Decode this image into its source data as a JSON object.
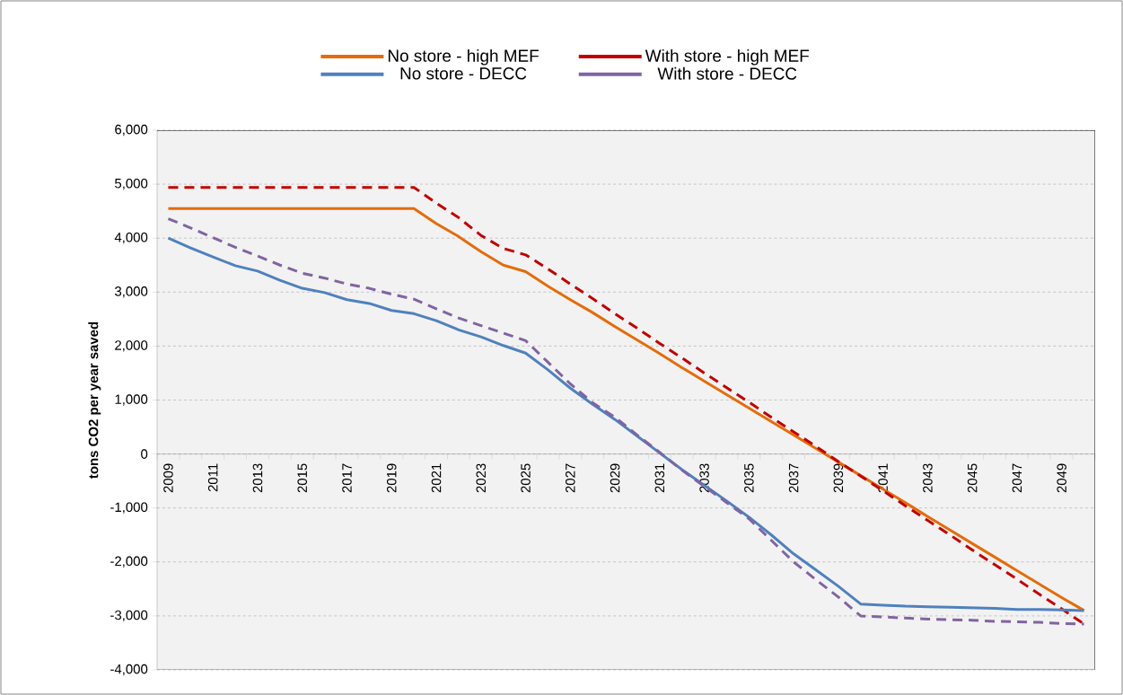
{
  "chart_data": {
    "type": "line",
    "ylabel": "tons CO2 per year saved",
    "categories": [
      "2009",
      null,
      "2011",
      null,
      "2013",
      null,
      "2015",
      null,
      "2017",
      null,
      "2019",
      null,
      "2021",
      null,
      "2023",
      null,
      "2025",
      null,
      "2027",
      null,
      "2029",
      null,
      "2031",
      null,
      "2033",
      null,
      "2035",
      null,
      "2037",
      null,
      "2039",
      null,
      "2041",
      null,
      "2043",
      null,
      "2045",
      null,
      "2047",
      null,
      "2049",
      null
    ],
    "series": [
      {
        "name": "No store - high MEF",
        "color": "#e46c0a",
        "line_style": "solid",
        "values": [
          4550,
          4550,
          4550,
          4550,
          4550,
          4550,
          4550,
          4550,
          4550,
          4550,
          4550,
          4550,
          4270,
          4030,
          3750,
          3500,
          3380,
          3110,
          2860,
          2620,
          2360,
          2110,
          1860,
          1600,
          1350,
          1100,
          850,
          600,
          350,
          100,
          -150,
          -400,
          -650,
          -900,
          -1160,
          -1410,
          -1660,
          -1910,
          -2160,
          -2410,
          -2660,
          -2900
        ]
      },
      {
        "name": "With store - high MEF",
        "color": "#c00000",
        "line_style": "dashed",
        "values": [
          4940,
          4940,
          4940,
          4940,
          4940,
          4940,
          4940,
          4940,
          4940,
          4940,
          4940,
          4940,
          4650,
          4380,
          4050,
          3810,
          3690,
          3430,
          3150,
          2880,
          2600,
          2330,
          2050,
          1780,
          1500,
          1230,
          960,
          680,
          410,
          140,
          -140,
          -410,
          -680,
          -960,
          -1230,
          -1500,
          -1780,
          -2050,
          -2320,
          -2600,
          -2870,
          -3150
        ]
      },
      {
        "name": "No store - DECC",
        "color": "#4f81bd",
        "line_style": "solid",
        "values": [
          4000,
          3820,
          3650,
          3490,
          3390,
          3220,
          3070,
          2990,
          2860,
          2790,
          2660,
          2600,
          2470,
          2300,
          2170,
          2010,
          1870,
          1560,
          1220,
          920,
          640,
          330,
          20,
          -290,
          -580,
          -870,
          -1170,
          -1500,
          -1850,
          -2150,
          -2450,
          -2780,
          -2800,
          -2820,
          -2830,
          -2840,
          -2850,
          -2860,
          -2880,
          -2880,
          -2890,
          -2900
        ]
      },
      {
        "name": "With store - DECC",
        "color": "#8064a2",
        "line_style": "dashed",
        "values": [
          4360,
          4190,
          4010,
          3830,
          3670,
          3500,
          3350,
          3260,
          3150,
          3070,
          2960,
          2870,
          2690,
          2520,
          2380,
          2240,
          2100,
          1700,
          1300,
          950,
          680,
          350,
          30,
          -300,
          -600,
          -900,
          -1200,
          -1600,
          -2000,
          -2330,
          -2650,
          -3000,
          -3020,
          -3040,
          -3060,
          -3070,
          -3080,
          -3100,
          -3110,
          -3120,
          -3140,
          -3150
        ]
      }
    ],
    "ylim": [
      -4000,
      6000
    ],
    "yticks": [
      {
        "value": -4000,
        "label": "-4,000"
      },
      {
        "value": -3000,
        "label": "-3,000"
      },
      {
        "value": -2000,
        "label": "-2,000"
      },
      {
        "value": -1000,
        "label": "-1,000"
      },
      0,
      {
        "value": 1000,
        "label": "1,000"
      },
      {
        "value": 2000,
        "label": "2,000"
      },
      {
        "value": 3000,
        "label": "3,000"
      },
      {
        "value": 4000,
        "label": "4,000"
      },
      {
        "value": 5000,
        "label": "5,000"
      },
      {
        "value": 6000,
        "label": "6,000"
      }
    ],
    "grid": "y",
    "legend": "top",
    "marker": "none"
  }
}
